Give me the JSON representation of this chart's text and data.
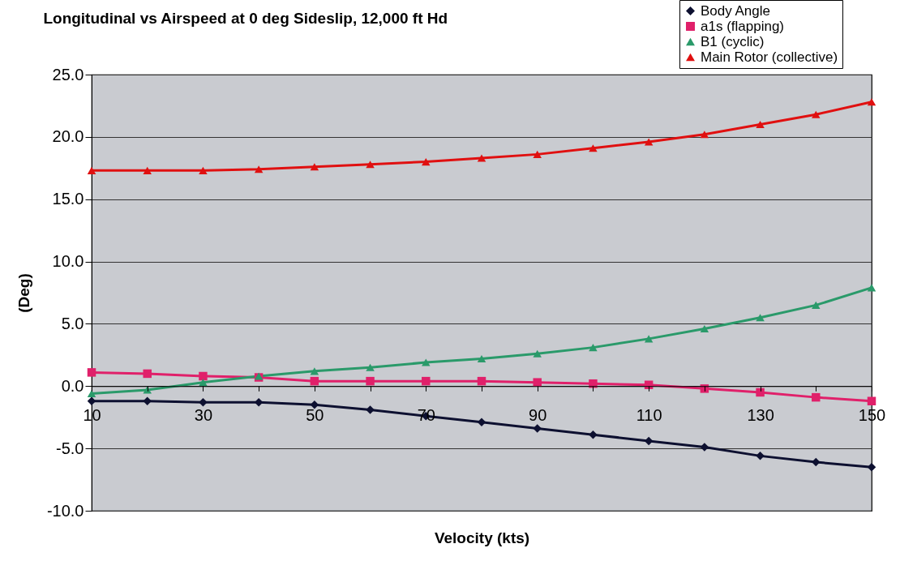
{
  "chart_data": {
    "type": "line",
    "title": "Longitudinal vs Airspeed at 0 deg Sideslip, 12,000 ft Hd",
    "xlabel": "Velocity (kts)",
    "ylabel": "(Deg)",
    "x": [
      10,
      20,
      30,
      40,
      50,
      60,
      70,
      80,
      90,
      100,
      110,
      120,
      130,
      140,
      150
    ],
    "series": [
      {
        "name": "Body Angle",
        "color": "#0d1030",
        "marker": "diamond",
        "values": [
          -1.2,
          -1.2,
          -1.3,
          -1.3,
          -1.5,
          -1.9,
          -2.4,
          -2.9,
          -3.4,
          -3.9,
          -4.4,
          -4.9,
          -5.6,
          -6.1,
          -6.5
        ]
      },
      {
        "name": "a1s (flapping)",
        "color": "#e0206a",
        "marker": "square",
        "values": [
          1.1,
          1.0,
          0.8,
          0.7,
          0.4,
          0.4,
          0.4,
          0.4,
          0.3,
          0.2,
          0.1,
          -0.2,
          -0.5,
          -0.9,
          -1.2
        ]
      },
      {
        "name": "B1 (cyclic)",
        "color": "#2a9a6a",
        "marker": "triangle",
        "values": [
          -0.6,
          -0.3,
          0.3,
          0.8,
          1.2,
          1.5,
          1.9,
          2.2,
          2.6,
          3.1,
          3.8,
          4.6,
          5.5,
          6.5,
          7.9
        ]
      },
      {
        "name": "Main Rotor (collective)",
        "color": "#e01010",
        "marker": "triangle",
        "values": [
          17.3,
          17.3,
          17.3,
          17.4,
          17.6,
          17.8,
          18.0,
          18.3,
          18.6,
          19.1,
          19.6,
          20.2,
          21.0,
          21.8,
          22.8
        ]
      }
    ],
    "xlim": [
      10,
      150
    ],
    "xticks": [
      10,
      {
        "value": 20,
        "label": null
      },
      30,
      {
        "value": 40,
        "label": null
      },
      50,
      {
        "value": 60,
        "label": null
      },
      70,
      {
        "value": 80,
        "label": null
      },
      90,
      {
        "value": 100,
        "label": null
      },
      110,
      {
        "value": 120,
        "label": null
      },
      130,
      {
        "value": 140,
        "label": null
      },
      150
    ],
    "ylim": [
      -10,
      25
    ],
    "yticks": [
      {
        "value": -10,
        "label": "-10.0"
      },
      {
        "value": -5,
        "label": "-5.0"
      },
      {
        "value": 0,
        "label": "0.0"
      },
      {
        "value": 5,
        "label": "5.0"
      },
      {
        "value": 10,
        "label": "10.0"
      },
      {
        "value": 15,
        "label": "15.0"
      },
      {
        "value": 20,
        "label": "20.0"
      },
      {
        "value": 25,
        "label": "25.0"
      }
    ],
    "grid": "y",
    "legend": "top right",
    "line_style": "solid"
  }
}
